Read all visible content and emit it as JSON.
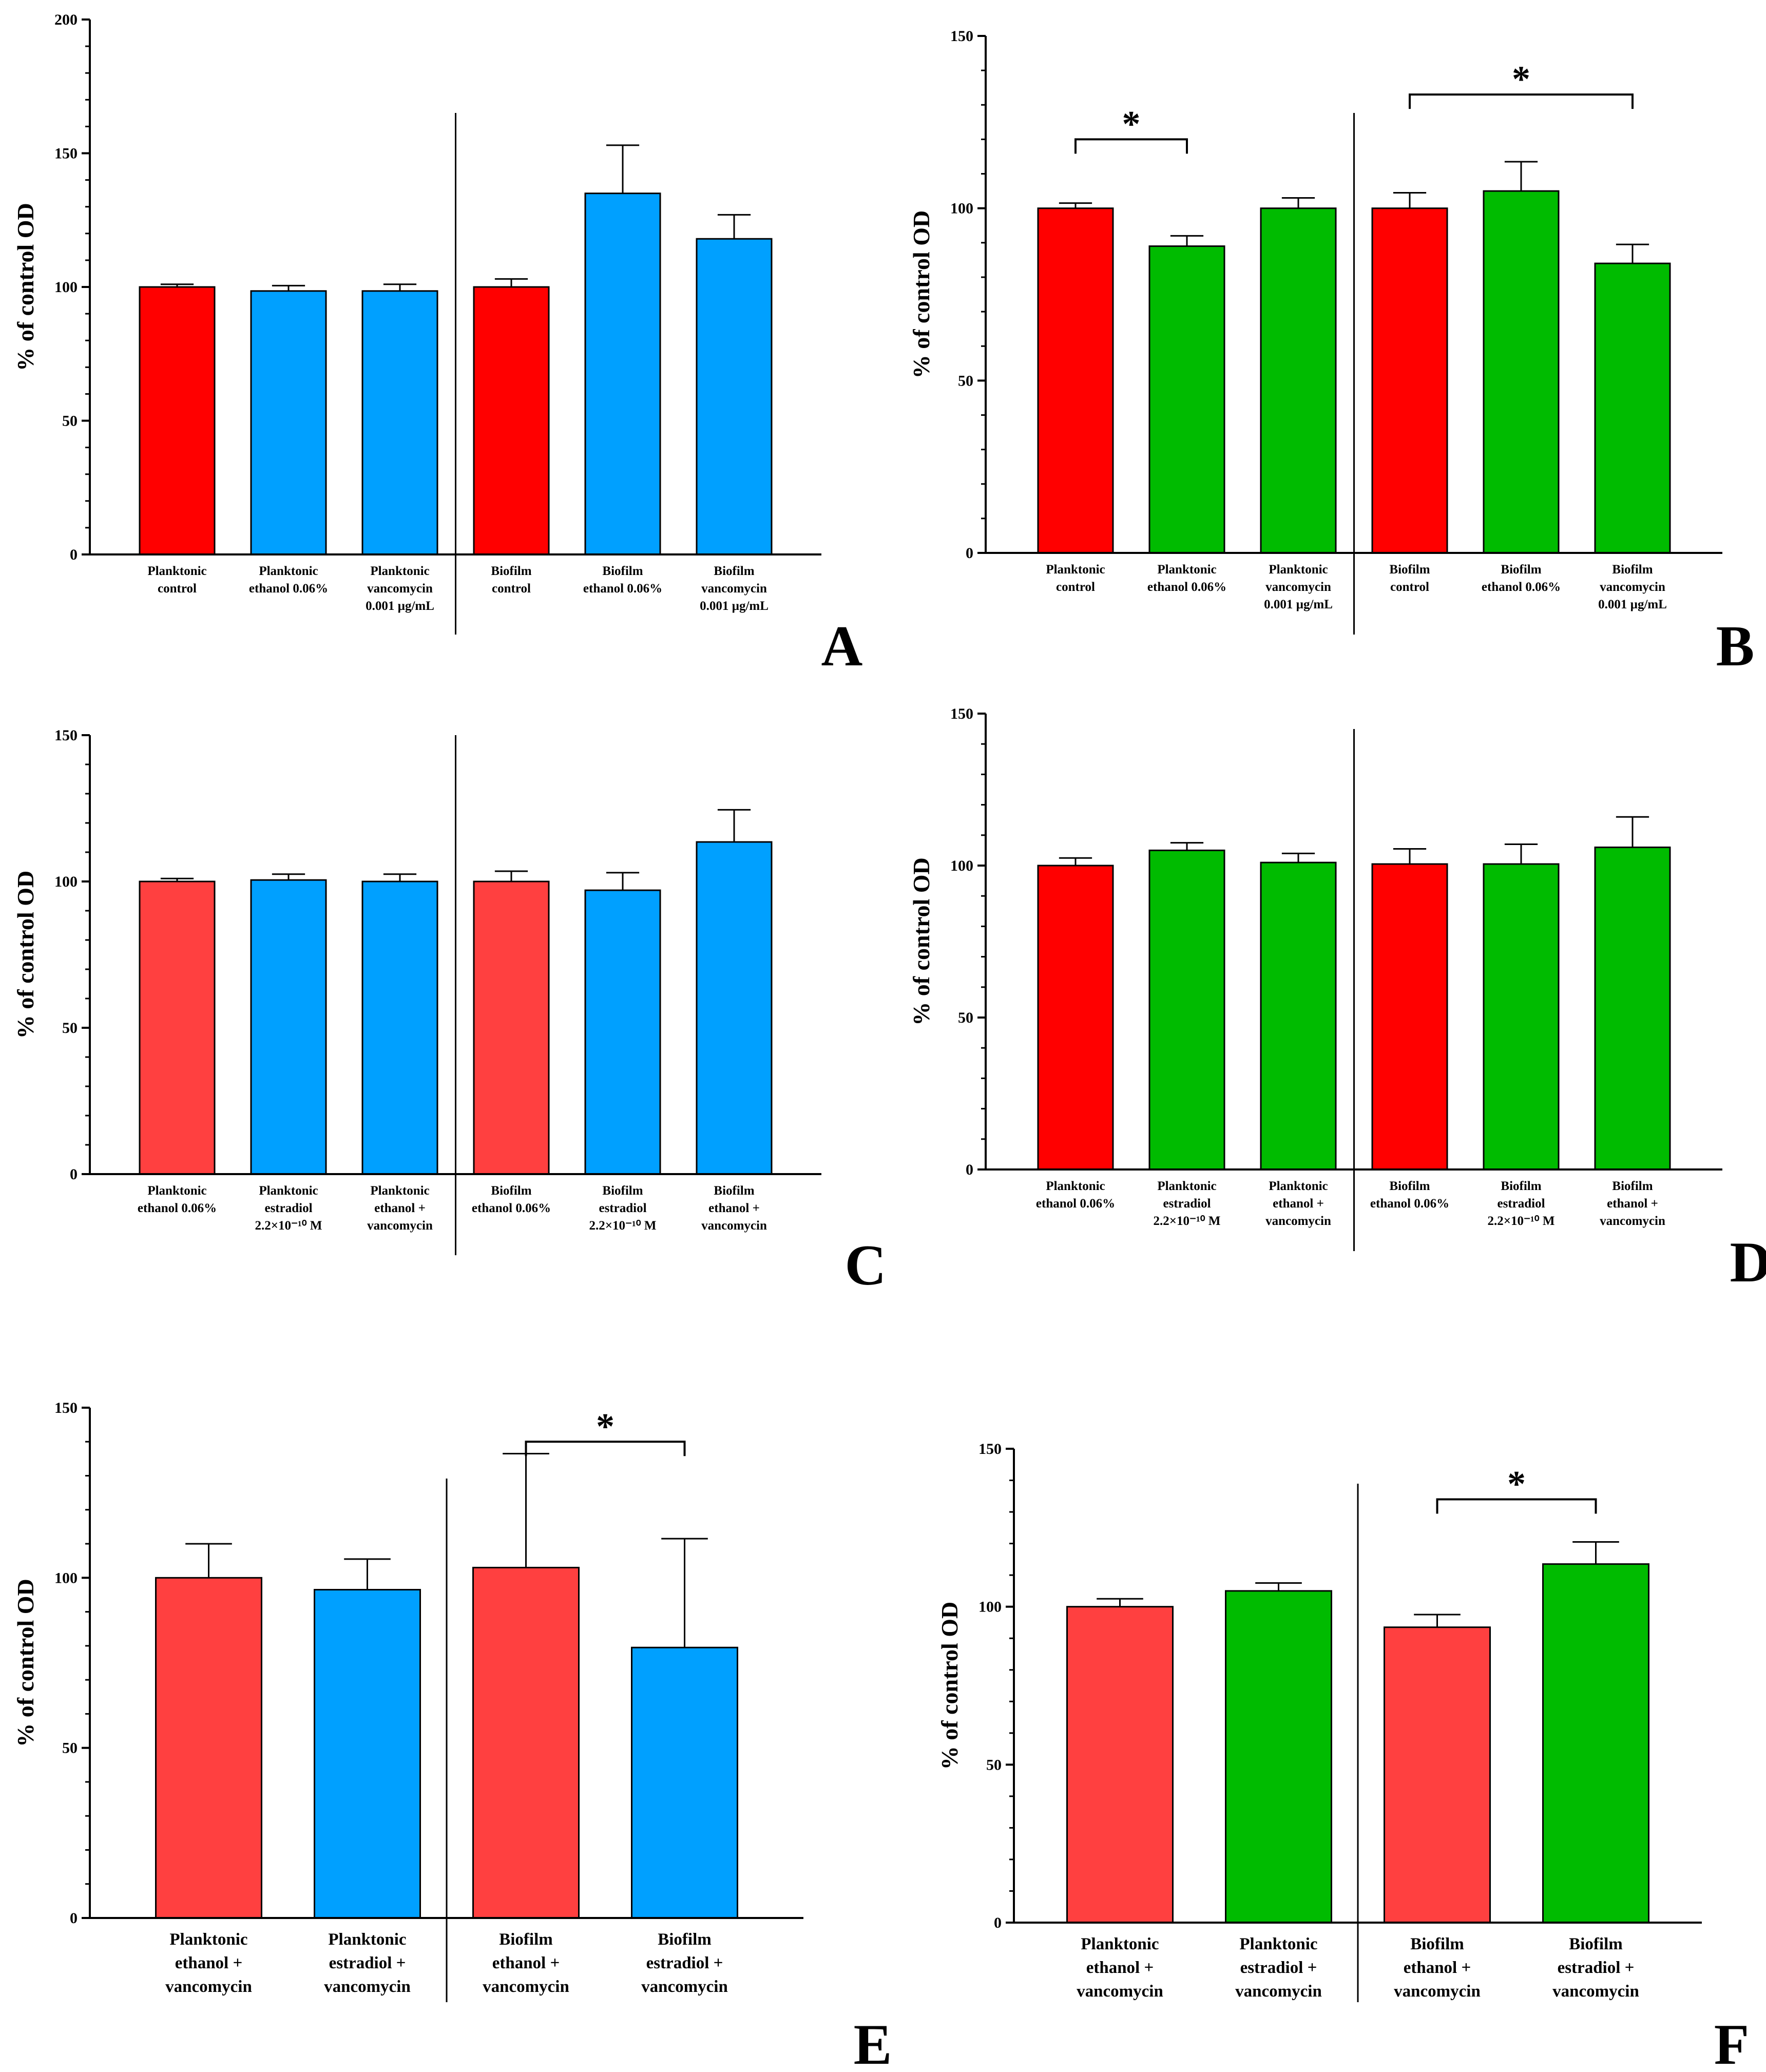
{
  "figure": {
    "label": "Six-panel bar chart figure"
  },
  "chart_data": [
    {
      "panel": "A",
      "type": "bar",
      "ylabel": "% of control  OD",
      "ylim": [
        0,
        200
      ],
      "yticks": [
        0,
        50,
        100,
        150,
        200
      ],
      "categories": [
        [
          "Planktonic",
          "control"
        ],
        [
          "Planktonic",
          "ethanol 0.06%"
        ],
        [
          "Planktonic",
          "vancomycin",
          "0.001 µg/mL"
        ],
        [
          "Biofilm",
          "control"
        ],
        [
          "Biofilm",
          "ethanol 0.06%"
        ],
        [
          "Biofilm",
          "vancomycin",
          "0.001 µg/mL"
        ]
      ],
      "values": [
        100,
        98.5,
        98.5,
        100,
        135,
        118
      ],
      "errors": [
        1,
        2,
        2.5,
        3,
        18,
        9
      ],
      "colors": [
        "#ff0000",
        "#00a0ff",
        "#00a0ff",
        "#ff0000",
        "#00a0ff",
        "#00a0ff"
      ],
      "separator_after": 3,
      "significance": []
    },
    {
      "panel": "B",
      "type": "bar",
      "ylabel": "% of control  OD",
      "ylim": [
        0,
        150
      ],
      "yticks": [
        0,
        50,
        100,
        150
      ],
      "categories": [
        [
          "Planktonic",
          "control"
        ],
        [
          "Planktonic",
          "ethanol 0.06%"
        ],
        [
          "Planktonic",
          "vancomycin",
          "0.001 µg/mL"
        ],
        [
          "Biofilm",
          "control"
        ],
        [
          "Biofilm",
          "ethanol 0.06%"
        ],
        [
          "Biofilm",
          "vancomycin",
          "0.001 µg/mL"
        ]
      ],
      "values": [
        100,
        89,
        100,
        100,
        105,
        84
      ],
      "errors": [
        1.5,
        3,
        3,
        4.5,
        8.5,
        5.5
      ],
      "colors": [
        "#ff0000",
        "#00bb00",
        "#00bb00",
        "#ff0000",
        "#00bb00",
        "#00bb00"
      ],
      "separator_after": 3,
      "significance": [
        {
          "from": 0,
          "to": 1,
          "y": 120,
          "label": "*"
        },
        {
          "from": 3,
          "to": 5,
          "y": 133,
          "label": "*"
        }
      ]
    },
    {
      "panel": "C",
      "type": "bar",
      "ylabel": "% of control  OD",
      "ylim": [
        0,
        150
      ],
      "yticks": [
        0,
        50,
        100,
        150
      ],
      "categories": [
        [
          "Planktonic",
          "ethanol 0.06%"
        ],
        [
          "Planktonic",
          "estradiol",
          "2.2×10⁻¹⁰ M"
        ],
        [
          "Planktonic",
          "ethanol +",
          "vancomycin"
        ],
        [
          "Biofilm",
          "ethanol 0.06%"
        ],
        [
          "Biofilm",
          "estradiol",
          "2.2×10⁻¹⁰ M"
        ],
        [
          "Biofilm",
          "ethanol +",
          "vancomycin"
        ]
      ],
      "values": [
        100,
        100.5,
        100,
        100,
        97,
        113.5
      ],
      "errors": [
        1,
        2,
        2.5,
        3.5,
        6,
        11
      ],
      "colors": [
        "#ff4040",
        "#00a0ff",
        "#00a0ff",
        "#ff4040",
        "#00a0ff",
        "#00a0ff"
      ],
      "separator_after": 3,
      "significance": []
    },
    {
      "panel": "D",
      "type": "bar",
      "ylabel": "% of control  OD",
      "ylim": [
        0,
        150
      ],
      "yticks": [
        0,
        50,
        100,
        150
      ],
      "categories": [
        [
          "Planktonic",
          "ethanol 0.06%"
        ],
        [
          "Planktonic",
          "estradiol",
          "2.2×10⁻¹⁰ M"
        ],
        [
          "Planktonic",
          "ethanol +",
          "vancomycin"
        ],
        [
          "Biofilm",
          "ethanol 0.06%"
        ],
        [
          "Biofilm",
          "estradiol",
          "2.2×10⁻¹⁰ M"
        ],
        [
          "Biofilm",
          "ethanol +",
          "vancomycin"
        ]
      ],
      "values": [
        100,
        105,
        101,
        100.5,
        100.5,
        106
      ],
      "errors": [
        2.5,
        2.5,
        3,
        5,
        6.5,
        10
      ],
      "colors": [
        "#ff0000",
        "#00bb00",
        "#00bb00",
        "#ff0000",
        "#00bb00",
        "#00bb00"
      ],
      "separator_after": 3,
      "significance": []
    },
    {
      "panel": "E",
      "type": "bar",
      "ylabel": "% of control  OD",
      "ylim": [
        0,
        150
      ],
      "yticks": [
        0,
        50,
        100,
        150
      ],
      "categories": [
        [
          "Planktonic",
          "ethanol +",
          "vancomycin"
        ],
        [
          "Planktonic",
          "estradiol +",
          "vancomycin"
        ],
        [
          "Biofilm",
          "ethanol +",
          "vancomycin"
        ],
        [
          "Biofilm",
          "estradiol +",
          "vancomycin"
        ]
      ],
      "values": [
        100,
        96.5,
        103,
        79.5
      ],
      "errors": [
        10,
        9,
        33.5,
        32
      ],
      "colors": [
        "#ff4040",
        "#00a0ff",
        "#ff4040",
        "#00a0ff"
      ],
      "separator_after": 2,
      "significance": [
        {
          "from": 2,
          "to": 3,
          "y": 140,
          "label": "*"
        }
      ]
    },
    {
      "panel": "F",
      "type": "bar",
      "ylabel": "% of control  OD",
      "ylim": [
        0,
        150
      ],
      "yticks": [
        0,
        50,
        100,
        150
      ],
      "categories": [
        [
          "Planktonic",
          "ethanol +",
          "vancomycin"
        ],
        [
          "Planktonic",
          "estradiol +",
          "vancomycin"
        ],
        [
          "Biofilm",
          "ethanol +",
          "vancomycin"
        ],
        [
          "Biofilm",
          "estradiol +",
          "vancomycin"
        ]
      ],
      "values": [
        100,
        105,
        93.5,
        113.5
      ],
      "errors": [
        2.5,
        2.5,
        4,
        7
      ],
      "colors": [
        "#ff4040",
        "#00bb00",
        "#ff4040",
        "#00bb00"
      ],
      "separator_after": 2,
      "significance": [
        {
          "from": 2,
          "to": 3,
          "y": 134,
          "label": "*"
        }
      ]
    }
  ]
}
